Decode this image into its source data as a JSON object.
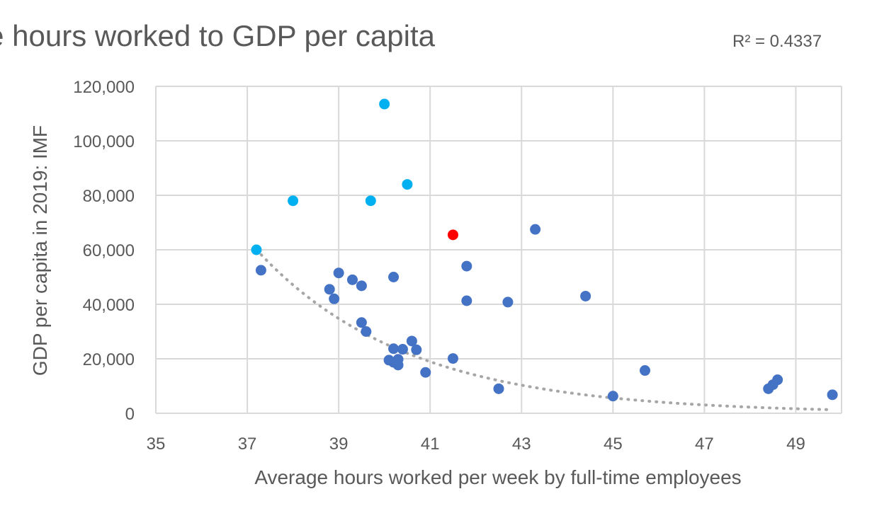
{
  "chart_data": {
    "type": "scatter",
    "title": "Average hours worked to GDP per capita",
    "r_squared_label": "R² = 0.4337",
    "xlabel": "Average hours worked per week by full-time employees",
    "ylabel": "GDP per capita in 2019: IMF",
    "xlim": [
      35,
      50
    ],
    "ylim": [
      0,
      120000
    ],
    "x_ticks": [
      35,
      37,
      39,
      41,
      43,
      45,
      47,
      49
    ],
    "x_tick_labels": [
      "35",
      "37",
      "39",
      "41",
      "43",
      "45",
      "47",
      "49"
    ],
    "y_ticks": [
      0,
      20000,
      40000,
      60000,
      80000,
      100000,
      120000
    ],
    "y_tick_labels": [
      "0",
      "20,000",
      "40,000",
      "60,000",
      "80,000",
      "100,000",
      "120,000"
    ],
    "grid": true,
    "legend": "none",
    "colors": {
      "default": "#4472c4",
      "highlight_cyan": "#00b0f0",
      "highlight_red": "#ff0000",
      "trendline": "#a6a6a6"
    },
    "trendline": {
      "type": "exponential",
      "x_start": 37.2,
      "x_end": 49.8,
      "a": 4880000000,
      "b": -0.3039
    },
    "series": [
      {
        "color": "#00b0f0",
        "points": [
          {
            "x": 37.2,
            "y": 60000
          },
          {
            "x": 38.0,
            "y": 78000
          },
          {
            "x": 39.7,
            "y": 78000
          },
          {
            "x": 40.0,
            "y": 113500
          },
          {
            "x": 40.5,
            "y": 84000
          }
        ]
      },
      {
        "color": "#ff0000",
        "points": [
          {
            "x": 41.5,
            "y": 65500
          }
        ]
      },
      {
        "color": "#4472c4",
        "points": [
          {
            "x": 37.3,
            "y": 52500
          },
          {
            "x": 38.8,
            "y": 45500
          },
          {
            "x": 38.9,
            "y": 42000
          },
          {
            "x": 39.0,
            "y": 51500
          },
          {
            "x": 39.3,
            "y": 49000
          },
          {
            "x": 39.5,
            "y": 46800
          },
          {
            "x": 39.5,
            "y": 33300
          },
          {
            "x": 39.6,
            "y": 30000
          },
          {
            "x": 40.1,
            "y": 19500
          },
          {
            "x": 40.2,
            "y": 50000
          },
          {
            "x": 40.2,
            "y": 23700
          },
          {
            "x": 40.2,
            "y": 18700
          },
          {
            "x": 40.3,
            "y": 19800
          },
          {
            "x": 40.3,
            "y": 17700
          },
          {
            "x": 40.4,
            "y": 23500
          },
          {
            "x": 40.6,
            "y": 26500
          },
          {
            "x": 40.7,
            "y": 23300
          },
          {
            "x": 40.9,
            "y": 15000
          },
          {
            "x": 41.5,
            "y": 20100
          },
          {
            "x": 41.8,
            "y": 54000
          },
          {
            "x": 41.8,
            "y": 41300
          },
          {
            "x": 42.5,
            "y": 9000
          },
          {
            "x": 42.7,
            "y": 40800
          },
          {
            "x": 43.3,
            "y": 67500
          },
          {
            "x": 44.4,
            "y": 43000
          },
          {
            "x": 45.0,
            "y": 6300
          },
          {
            "x": 45.7,
            "y": 15700
          },
          {
            "x": 48.4,
            "y": 9000
          },
          {
            "x": 48.5,
            "y": 10500
          },
          {
            "x": 48.6,
            "y": 12300
          },
          {
            "x": 49.8,
            "y": 6800
          }
        ]
      }
    ]
  }
}
